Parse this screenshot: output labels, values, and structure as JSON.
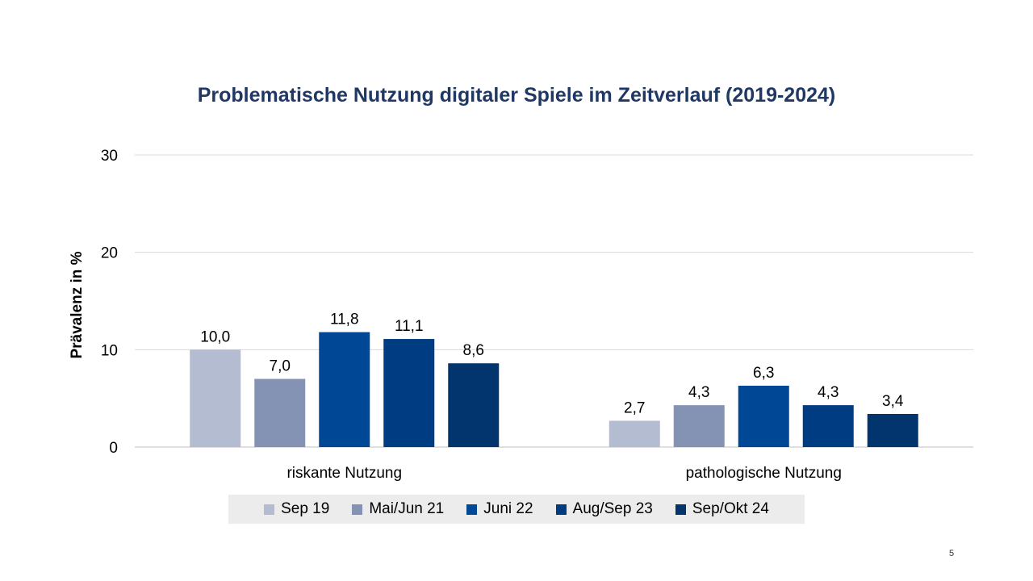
{
  "page_number": "5",
  "chart_data": {
    "type": "bar",
    "title": "Problematische Nutzung digitaler Spiele im Zeitverlauf (2019-2024)",
    "ylabel": "Prävalenz  in %",
    "xlabel": "",
    "ylim": [
      0,
      30
    ],
    "yticks": [
      0,
      10,
      20,
      30
    ],
    "grid": true,
    "legend_position": "bottom",
    "categories": [
      "riskante Nutzung",
      "pathologische Nutzung"
    ],
    "series": [
      {
        "name": "Sep 19",
        "color": "#b4bcd2",
        "values": [
          10.0,
          2.7
        ],
        "labels": [
          "10,0",
          "2,7"
        ]
      },
      {
        "name": "Mai/Jun 21",
        "color": "#8493b3",
        "values": [
          7.0,
          4.3
        ],
        "labels": [
          "7,0",
          "4,3"
        ]
      },
      {
        "name": "Juni 22",
        "color": "#004895",
        "values": [
          11.8,
          6.3
        ],
        "labels": [
          "11,8",
          "6,3"
        ]
      },
      {
        "name": "Aug/Sep 23",
        "color": "#003c81",
        "values": [
          11.1,
          4.3
        ],
        "labels": [
          "11,1",
          "4,3"
        ]
      },
      {
        "name": "Sep/Okt 24",
        "color": "#02346d",
        "values": [
          8.6,
          3.4
        ],
        "labels": [
          "8,6",
          "3,4"
        ]
      }
    ]
  }
}
